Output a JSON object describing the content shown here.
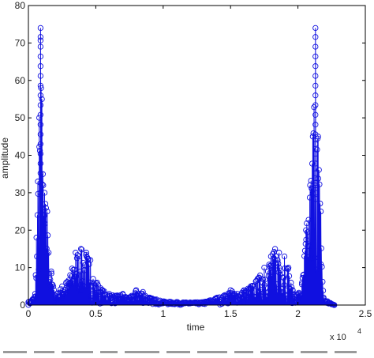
{
  "chart_data": {
    "type": "scatter",
    "title": "",
    "xlabel": "time",
    "ylabel": "amplitude",
    "x_exponent_label": "x 10",
    "x_exponent_power": "4",
    "xlim": [
      0,
      25000
    ],
    "ylim": [
      0,
      80
    ],
    "xticks": [
      "0",
      "0.5",
      "1",
      "1.5",
      "2",
      "2.5"
    ],
    "yticks": [
      "0",
      "10",
      "20",
      "30",
      "40",
      "50",
      "60",
      "70",
      "80"
    ],
    "grid": false,
    "marker": "circle",
    "line_connected": true,
    "colors": {
      "series": "#1010e0",
      "axis": "#000000"
    },
    "envelope": [
      [
        0,
        0.8
      ],
      [
        300,
        1.5
      ],
      [
        500,
        3
      ],
      [
        600,
        18
      ],
      [
        700,
        33
      ],
      [
        800,
        50
      ],
      [
        900,
        74
      ],
      [
        1000,
        55
      ],
      [
        1100,
        32
      ],
      [
        1200,
        30
      ],
      [
        1400,
        25
      ],
      [
        1500,
        14
      ],
      [
        1700,
        9
      ],
      [
        1900,
        4
      ],
      [
        2100,
        3
      ],
      [
        2500,
        5
      ],
      [
        2800,
        6
      ],
      [
        3100,
        8
      ],
      [
        3500,
        14
      ],
      [
        3900,
        15
      ],
      [
        4300,
        14
      ],
      [
        4600,
        12
      ],
      [
        4800,
        7
      ],
      [
        5100,
        6
      ],
      [
        5500,
        4
      ],
      [
        6000,
        3
      ],
      [
        6500,
        2.5
      ],
      [
        7000,
        3
      ],
      [
        7500,
        2
      ],
      [
        8000,
        4
      ],
      [
        8500,
        3.5
      ],
      [
        9000,
        2
      ],
      [
        9500,
        1.5
      ],
      [
        10000,
        1
      ],
      [
        11000,
        0.8
      ],
      [
        12000,
        0.7
      ],
      [
        13000,
        0.8
      ],
      [
        14000,
        2
      ],
      [
        14500,
        2.5
      ],
      [
        15000,
        4
      ],
      [
        15500,
        3
      ],
      [
        16000,
        4
      ],
      [
        16500,
        5
      ],
      [
        17000,
        7
      ],
      [
        17500,
        10
      ],
      [
        18000,
        13
      ],
      [
        18300,
        15
      ],
      [
        18600,
        14
      ],
      [
        19000,
        13
      ],
      [
        19300,
        10
      ],
      [
        19600,
        4
      ],
      [
        20000,
        3
      ],
      [
        20300,
        6
      ],
      [
        20600,
        20
      ],
      [
        20900,
        32
      ],
      [
        21100,
        45
      ],
      [
        21300,
        74
      ],
      [
        21500,
        45
      ],
      [
        21700,
        25
      ],
      [
        21900,
        2
      ],
      [
        22200,
        1
      ],
      [
        22700,
        0
      ]
    ]
  }
}
